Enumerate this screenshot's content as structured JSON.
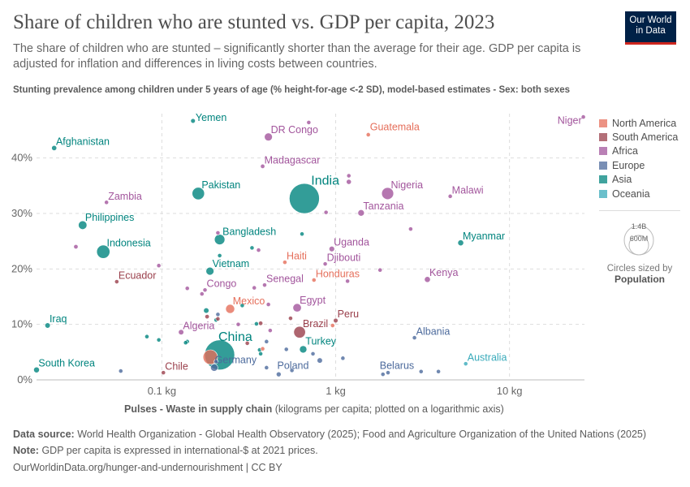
{
  "header": {
    "title": "Share of children who are stunted vs. GDP per capita, 2023",
    "subtitle": "The share of children who are stunted – significantly shorter than the average for their age. GDP per capita is adjusted for inflation and differences in living costs between countries.",
    "logo_text": "Our World in Data"
  },
  "footer": {
    "source_label": "Data source:",
    "source": "World Health Organization - Global Health Observatory (2025); Food and Agriculture Organization of the United Nations (2025)",
    "note_label": "Note:",
    "note": "GDP per capita is expressed in international-$ at 2021 prices.",
    "url": "OurWorldinData.org/hunger-and-undernourishment | CC BY"
  },
  "legend": {
    "items": [
      {
        "label": "North America",
        "color": "#E56E5A"
      },
      {
        "label": "South America",
        "color": "#9A3F4B"
      },
      {
        "label": "Africa",
        "color": "#A2559C"
      },
      {
        "label": "Europe",
        "color": "#4C6A9C"
      },
      {
        "label": "Asia",
        "color": "#00847E"
      },
      {
        "label": "Oceania",
        "color": "#38AABA"
      }
    ],
    "size_big": "1.4B",
    "size_small": "600M",
    "size_caption": "Circles sized by",
    "size_variable": "Population"
  },
  "chart_data": {
    "type": "scatter",
    "title": "Share of children who are stunted vs. GDP per capita, 2023",
    "ylabel": "Stunting prevalence among children under 5 years of age (% height-for-age <-2 SD), model-based estimates - Sex: both sexes",
    "xlabel_bold": "Pulses - Waste in supply chain",
    "xlabel_rest": " (kilograms per capita; plotted on a logarithmic axis)",
    "x_scale": "log",
    "xlim": [
      0.019,
      27
    ],
    "ylim": [
      0,
      48
    ],
    "x_ticks": [
      {
        "v": 0.1,
        "label": "0.1 kg"
      },
      {
        "v": 1,
        "label": "1 kg"
      },
      {
        "v": 10,
        "label": "10 kg"
      }
    ],
    "y_ticks": [
      {
        "v": 0,
        "label": "0%"
      },
      {
        "v": 10,
        "label": "10%"
      },
      {
        "v": 20,
        "label": "20%"
      },
      {
        "v": 30,
        "label": "30%"
      },
      {
        "v": 40,
        "label": "40%"
      }
    ],
    "grid": true,
    "legend_position": "right",
    "points": [
      {
        "name": "Afghanistan",
        "region": "Asia",
        "x": 0.024,
        "y": 41.8,
        "pop": 41
      },
      {
        "name": "Yemen",
        "region": "Asia",
        "x": 0.151,
        "y": 46.7,
        "pop": 34
      },
      {
        "name": "DR Congo",
        "region": "Africa",
        "x": 0.41,
        "y": 43.8,
        "pop": 100
      },
      {
        "name": "Guatemala",
        "region": "North America",
        "x": 1.54,
        "y": 44.2,
        "pop": 18
      },
      {
        "name": "Niger",
        "region": "Africa",
        "x": 26.6,
        "y": 47.4,
        "pop": 26
      },
      {
        "name": "Madagascar",
        "region": "Africa",
        "x": 0.38,
        "y": 38.5,
        "pop": 30
      },
      {
        "name": "India",
        "region": "Asia",
        "x": 0.66,
        "y": 32.7,
        "pop": 1420
      },
      {
        "name": "Pakistan",
        "region": "Asia",
        "x": 0.162,
        "y": 33.6,
        "pop": 240
      },
      {
        "name": "Zambia",
        "region": "Africa",
        "x": 0.048,
        "y": 32.0,
        "pop": 20
      },
      {
        "name": "Nigeria",
        "region": "Africa",
        "x": 1.99,
        "y": 33.6,
        "pop": 225
      },
      {
        "name": "Malawi",
        "region": "Africa",
        "x": 4.56,
        "y": 33.1,
        "pop": 20
      },
      {
        "name": "Tanzania",
        "region": "Africa",
        "x": 1.4,
        "y": 30.1,
        "pop": 65
      },
      {
        "name": "Philippines",
        "region": "Asia",
        "x": 0.035,
        "y": 27.9,
        "pop": 115
      },
      {
        "name": "Indonesia",
        "region": "Asia",
        "x": 0.046,
        "y": 23.1,
        "pop": 275
      },
      {
        "name": "Bangladesh",
        "region": "Asia",
        "x": 0.215,
        "y": 25.3,
        "pop": 170
      },
      {
        "name": "Myanmar",
        "region": "Asia",
        "x": 5.24,
        "y": 24.7,
        "pop": 54
      },
      {
        "name": "Uganda",
        "region": "Africa",
        "x": 0.95,
        "y": 23.6,
        "pop": 48
      },
      {
        "name": "Vietnam",
        "region": "Asia",
        "x": 0.189,
        "y": 19.6,
        "pop": 99
      },
      {
        "name": "Haiti",
        "region": "North America",
        "x": 0.51,
        "y": 21.2,
        "pop": 11
      },
      {
        "name": "Djibouti",
        "region": "Africa",
        "x": 0.87,
        "y": 20.9,
        "pop": 1
      },
      {
        "name": "Ecuador",
        "region": "South America",
        "x": 0.055,
        "y": 17.7,
        "pop": 18
      },
      {
        "name": "Kenya",
        "region": "Africa",
        "x": 3.37,
        "y": 18.1,
        "pop": 55
      },
      {
        "name": "Honduras",
        "region": "North America",
        "x": 0.75,
        "y": 18.0,
        "pop": 10
      },
      {
        "name": "Congo",
        "region": "Africa",
        "x": 0.177,
        "y": 16.2,
        "pop": 6
      },
      {
        "name": "Senegal",
        "region": "Africa",
        "x": 0.39,
        "y": 17.1,
        "pop": 18
      },
      {
        "name": "Mexico",
        "region": "North America",
        "x": 0.247,
        "y": 12.8,
        "pop": 128
      },
      {
        "name": "Egypt",
        "region": "Africa",
        "x": 0.6,
        "y": 13.0,
        "pop": 112
      },
      {
        "name": "Peru",
        "region": "South America",
        "x": 1.0,
        "y": 10.7,
        "pop": 34
      },
      {
        "name": "Iraq",
        "region": "Asia",
        "x": 0.022,
        "y": 9.8,
        "pop": 45
      },
      {
        "name": "Brazil",
        "region": "South America",
        "x": 0.62,
        "y": 8.6,
        "pop": 215
      },
      {
        "name": "Algeria",
        "region": "Africa",
        "x": 0.129,
        "y": 8.6,
        "pop": 45
      },
      {
        "name": "United States",
        "region": "North America",
        "x": 0.19,
        "y": 4.1,
        "pop": 335,
        "unlabeled": true
      },
      {
        "name": "China",
        "region": "Asia",
        "x": 0.215,
        "y": 4.5,
        "pop": 1410
      },
      {
        "name": "Albania",
        "region": "Europe",
        "x": 2.84,
        "y": 7.6,
        "pop": 3
      },
      {
        "name": "Turkey",
        "region": "Asia",
        "x": 0.65,
        "y": 5.5,
        "pop": 85
      },
      {
        "name": "Germany",
        "region": "Europe",
        "x": 0.2,
        "y": 2.2,
        "pop": 84
      },
      {
        "name": "Australia",
        "region": "Oceania",
        "x": 5.6,
        "y": 2.9,
        "pop": 26
      },
      {
        "name": "Poland",
        "region": "Europe",
        "x": 0.47,
        "y": 1.0,
        "pop": 37
      },
      {
        "name": "Belarus",
        "region": "Europe",
        "x": 1.87,
        "y": 1.0,
        "pop": 9
      },
      {
        "name": "South Korea",
        "region": "Asia",
        "x": 0.019,
        "y": 1.8,
        "pop": 52
      },
      {
        "name": "Chile",
        "region": "South America",
        "x": 0.102,
        "y": 1.3,
        "pop": 19
      },
      {
        "region": "Africa",
        "x": 0.7,
        "y": 46.4,
        "pop": 12
      },
      {
        "region": "Africa",
        "x": 1.19,
        "y": 36.8,
        "pop": 12
      },
      {
        "region": "Africa",
        "x": 1.19,
        "y": 35.7,
        "pop": 40
      },
      {
        "region": "Africa",
        "x": 0.88,
        "y": 30.2,
        "pop": 3
      },
      {
        "region": "Africa",
        "x": 2.7,
        "y": 27.2,
        "pop": 12
      },
      {
        "region": "Africa",
        "x": 0.21,
        "y": 26.5,
        "pop": 5
      },
      {
        "region": "Asia",
        "x": 0.64,
        "y": 26.3,
        "pop": 8
      },
      {
        "region": "Africa",
        "x": 0.032,
        "y": 24.0,
        "pop": 30
      },
      {
        "region": "Asia",
        "x": 0.33,
        "y": 23.8,
        "pop": 7
      },
      {
        "region": "Africa",
        "x": 0.36,
        "y": 23.4,
        "pop": 7
      },
      {
        "region": "Asia",
        "x": 0.215,
        "y": 22.4,
        "pop": 4
      },
      {
        "region": "Africa",
        "x": 0.096,
        "y": 20.6,
        "pop": 18
      },
      {
        "region": "Africa",
        "x": 1.8,
        "y": 19.8,
        "pop": 8
      },
      {
        "region": "Africa",
        "x": 1.17,
        "y": 17.8,
        "pop": 8
      },
      {
        "region": "Africa",
        "x": 0.14,
        "y": 16.5,
        "pop": 15
      },
      {
        "region": "Africa",
        "x": 0.17,
        "y": 15.5,
        "pop": 28
      },
      {
        "region": "Africa",
        "x": 0.34,
        "y": 16.6,
        "pop": 9
      },
      {
        "region": "Asia",
        "x": 0.18,
        "y": 12.5,
        "pop": 45
      },
      {
        "region": "South America",
        "x": 0.182,
        "y": 11.4,
        "pop": 30
      },
      {
        "region": "Asia",
        "x": 0.29,
        "y": 13.4,
        "pop": 5
      },
      {
        "region": "Africa",
        "x": 0.41,
        "y": 13.6,
        "pop": 20
      },
      {
        "region": "Europe",
        "x": 0.21,
        "y": 11.8,
        "pop": 10
      },
      {
        "region": "South America",
        "x": 0.21,
        "y": 11.0,
        "pop": 8
      },
      {
        "region": "Asia",
        "x": 0.205,
        "y": 10.8,
        "pop": 10
      },
      {
        "region": "Africa",
        "x": 0.275,
        "y": 10.0,
        "pop": 5
      },
      {
        "region": "South America",
        "x": 0.37,
        "y": 10.2,
        "pop": 30
      },
      {
        "region": "Asia",
        "x": 0.35,
        "y": 10.1,
        "pop": 8
      },
      {
        "region": "Africa",
        "x": 0.42,
        "y": 8.9,
        "pop": 5
      },
      {
        "region": "South America",
        "x": 0.55,
        "y": 11.1,
        "pop": 6
      },
      {
        "region": "North America",
        "x": 0.96,
        "y": 9.8,
        "pop": 6
      },
      {
        "region": "Asia",
        "x": 0.082,
        "y": 7.8,
        "pop": 7
      },
      {
        "region": "Asia",
        "x": 0.096,
        "y": 7.2,
        "pop": 7
      },
      {
        "region": "Asia",
        "x": 0.14,
        "y": 6.9,
        "pop": 10
      },
      {
        "region": "Asia",
        "x": 0.137,
        "y": 6.7,
        "pop": 10
      },
      {
        "region": "South America",
        "x": 0.31,
        "y": 6.6,
        "pop": 7
      },
      {
        "region": "Europe",
        "x": 0.4,
        "y": 6.9,
        "pop": 10
      },
      {
        "region": "Asia",
        "x": 0.365,
        "y": 5.4,
        "pop": 8
      },
      {
        "region": "North America",
        "x": 0.38,
        "y": 5.6,
        "pop": 5
      },
      {
        "region": "Asia",
        "x": 0.37,
        "y": 4.7,
        "pop": 7
      },
      {
        "region": "Europe",
        "x": 0.52,
        "y": 5.5,
        "pop": 8
      },
      {
        "region": "Europe",
        "x": 0.74,
        "y": 4.7,
        "pop": 5
      },
      {
        "region": "Europe",
        "x": 0.81,
        "y": 3.5,
        "pop": 45
      },
      {
        "region": "Europe",
        "x": 1.1,
        "y": 3.9,
        "pop": 5
      },
      {
        "region": "Europe",
        "x": 0.4,
        "y": 2.2,
        "pop": 5
      },
      {
        "region": "Europe",
        "x": 0.56,
        "y": 1.7,
        "pop": 4
      },
      {
        "region": "Europe",
        "x": 2.0,
        "y": 1.3,
        "pop": 4
      },
      {
        "region": "Europe",
        "x": 3.1,
        "y": 1.5,
        "pop": 4
      },
      {
        "region": "Europe",
        "x": 3.9,
        "y": 1.5,
        "pop": 5
      },
      {
        "region": "Europe",
        "x": 0.058,
        "y": 1.6,
        "pop": 5
      },
      {
        "region": "Europe",
        "x": 0.205,
        "y": 3.3,
        "pop": 10
      }
    ]
  }
}
